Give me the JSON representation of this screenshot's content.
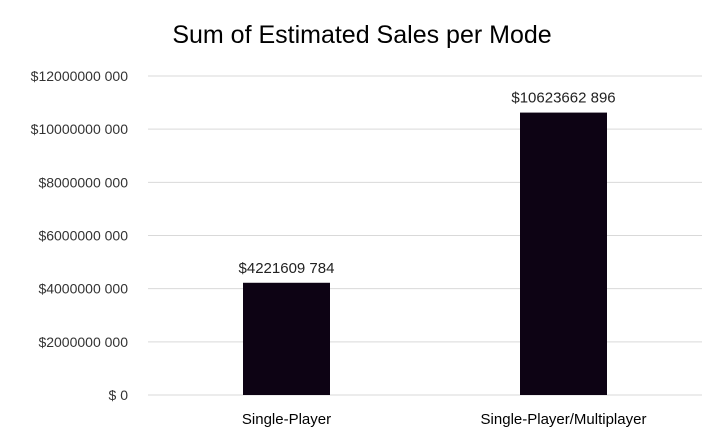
{
  "chart_data": {
    "type": "bar",
    "title": "Sum of Estimated Sales per Mode",
    "xlabel": "",
    "ylabel": "",
    "categories": [
      "Single-Player",
      "Single-Player/Multiplayer"
    ],
    "series": [
      {
        "values": [
          4221609784,
          10623662896
        ],
        "data_labels": [
          "$4221609 784",
          "$10623662 896"
        ],
        "color": "#0d0314"
      }
    ],
    "ylim": [
      0,
      12000000000
    ],
    "y_ticks": [
      0,
      2000000000,
      4000000000,
      6000000000,
      8000000000,
      10000000000,
      12000000000
    ],
    "y_tick_labels": [
      "$ 0",
      "$2000000 000",
      "$4000000 000",
      "$6000000 000",
      "$8000000 000",
      "$10000000 000",
      "$12000000 000"
    ],
    "grid": true,
    "legend": "none"
  }
}
